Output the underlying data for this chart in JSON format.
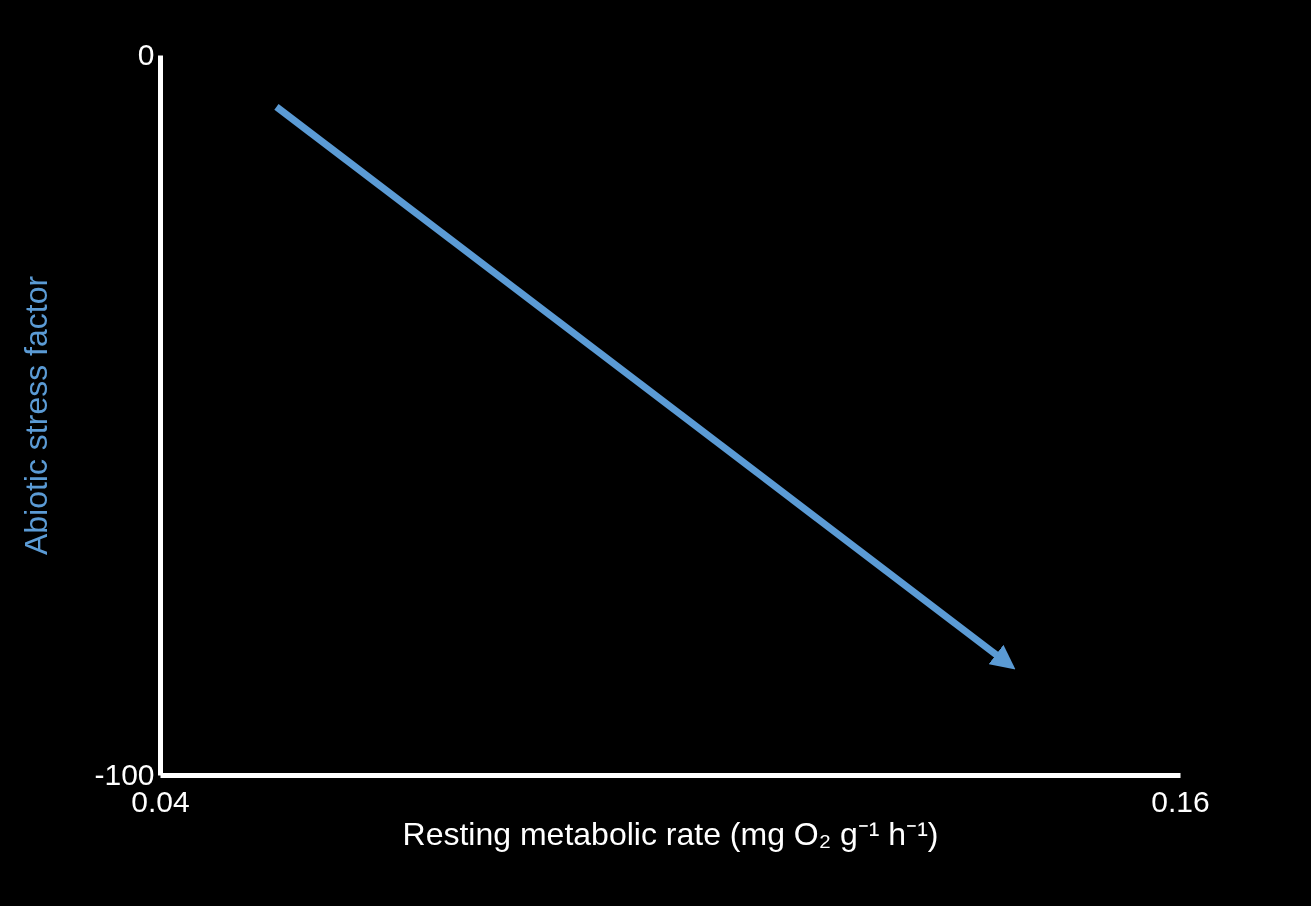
{
  "chart_data": {
    "type": "line",
    "xlabel": "Resting metabolic rate (mg O₂ g⁻¹ h⁻¹)",
    "ylabel": "Abiotic stress factor",
    "x": [
      0.0537,
      0.1395
    ],
    "series": [
      {
        "color": "#5b9bd5",
        "values": [
          -7.2,
          -84.3
        ]
      }
    ],
    "xlim": [
      0.04,
      0.16
    ],
    "ylim": [
      -100,
      0
    ],
    "xticks": [
      0.04,
      0.16
    ],
    "yticks": [
      -100,
      0
    ]
  }
}
